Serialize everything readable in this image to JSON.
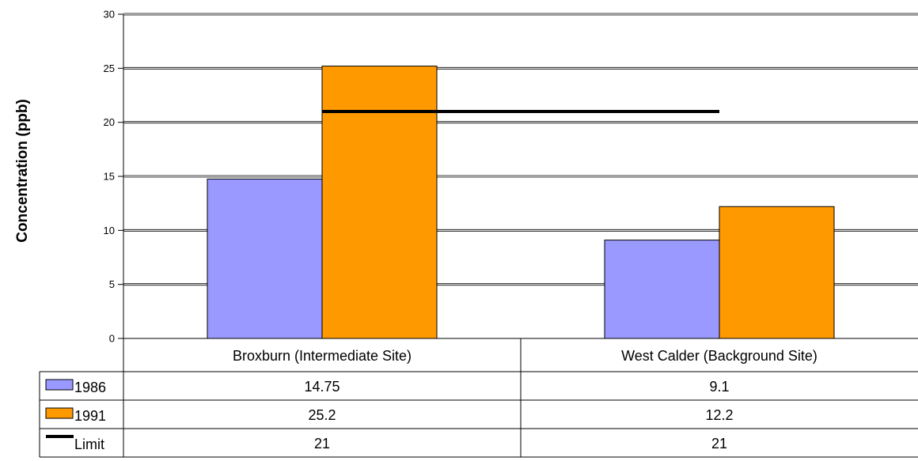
{
  "chart_data": {
    "type": "bar",
    "title": "",
    "xlabel": "",
    "ylabel": "Concentration (ppb)",
    "ylim": [
      0,
      30
    ],
    "yticks": [
      0,
      5,
      10,
      15,
      20,
      25,
      30
    ],
    "grid": true,
    "categories": [
      "Broxburn (Intermediate Site)",
      "West Calder (Background Site)"
    ],
    "series": [
      {
        "name": "1986",
        "type": "bar",
        "color": "#9999ff",
        "values": [
          14.75,
          9.1
        ],
        "labels": [
          "14.75",
          "9.1"
        ]
      },
      {
        "name": "1991",
        "type": "bar",
        "color": "#ff9900",
        "values": [
          25.2,
          12.2
        ],
        "labels": [
          "25.2",
          "12.2"
        ]
      },
      {
        "name": "Limit",
        "type": "line",
        "color": "#000000",
        "values": [
          21,
          21
        ],
        "labels": [
          "21",
          "21"
        ]
      }
    ],
    "legend": "data-table-left"
  }
}
